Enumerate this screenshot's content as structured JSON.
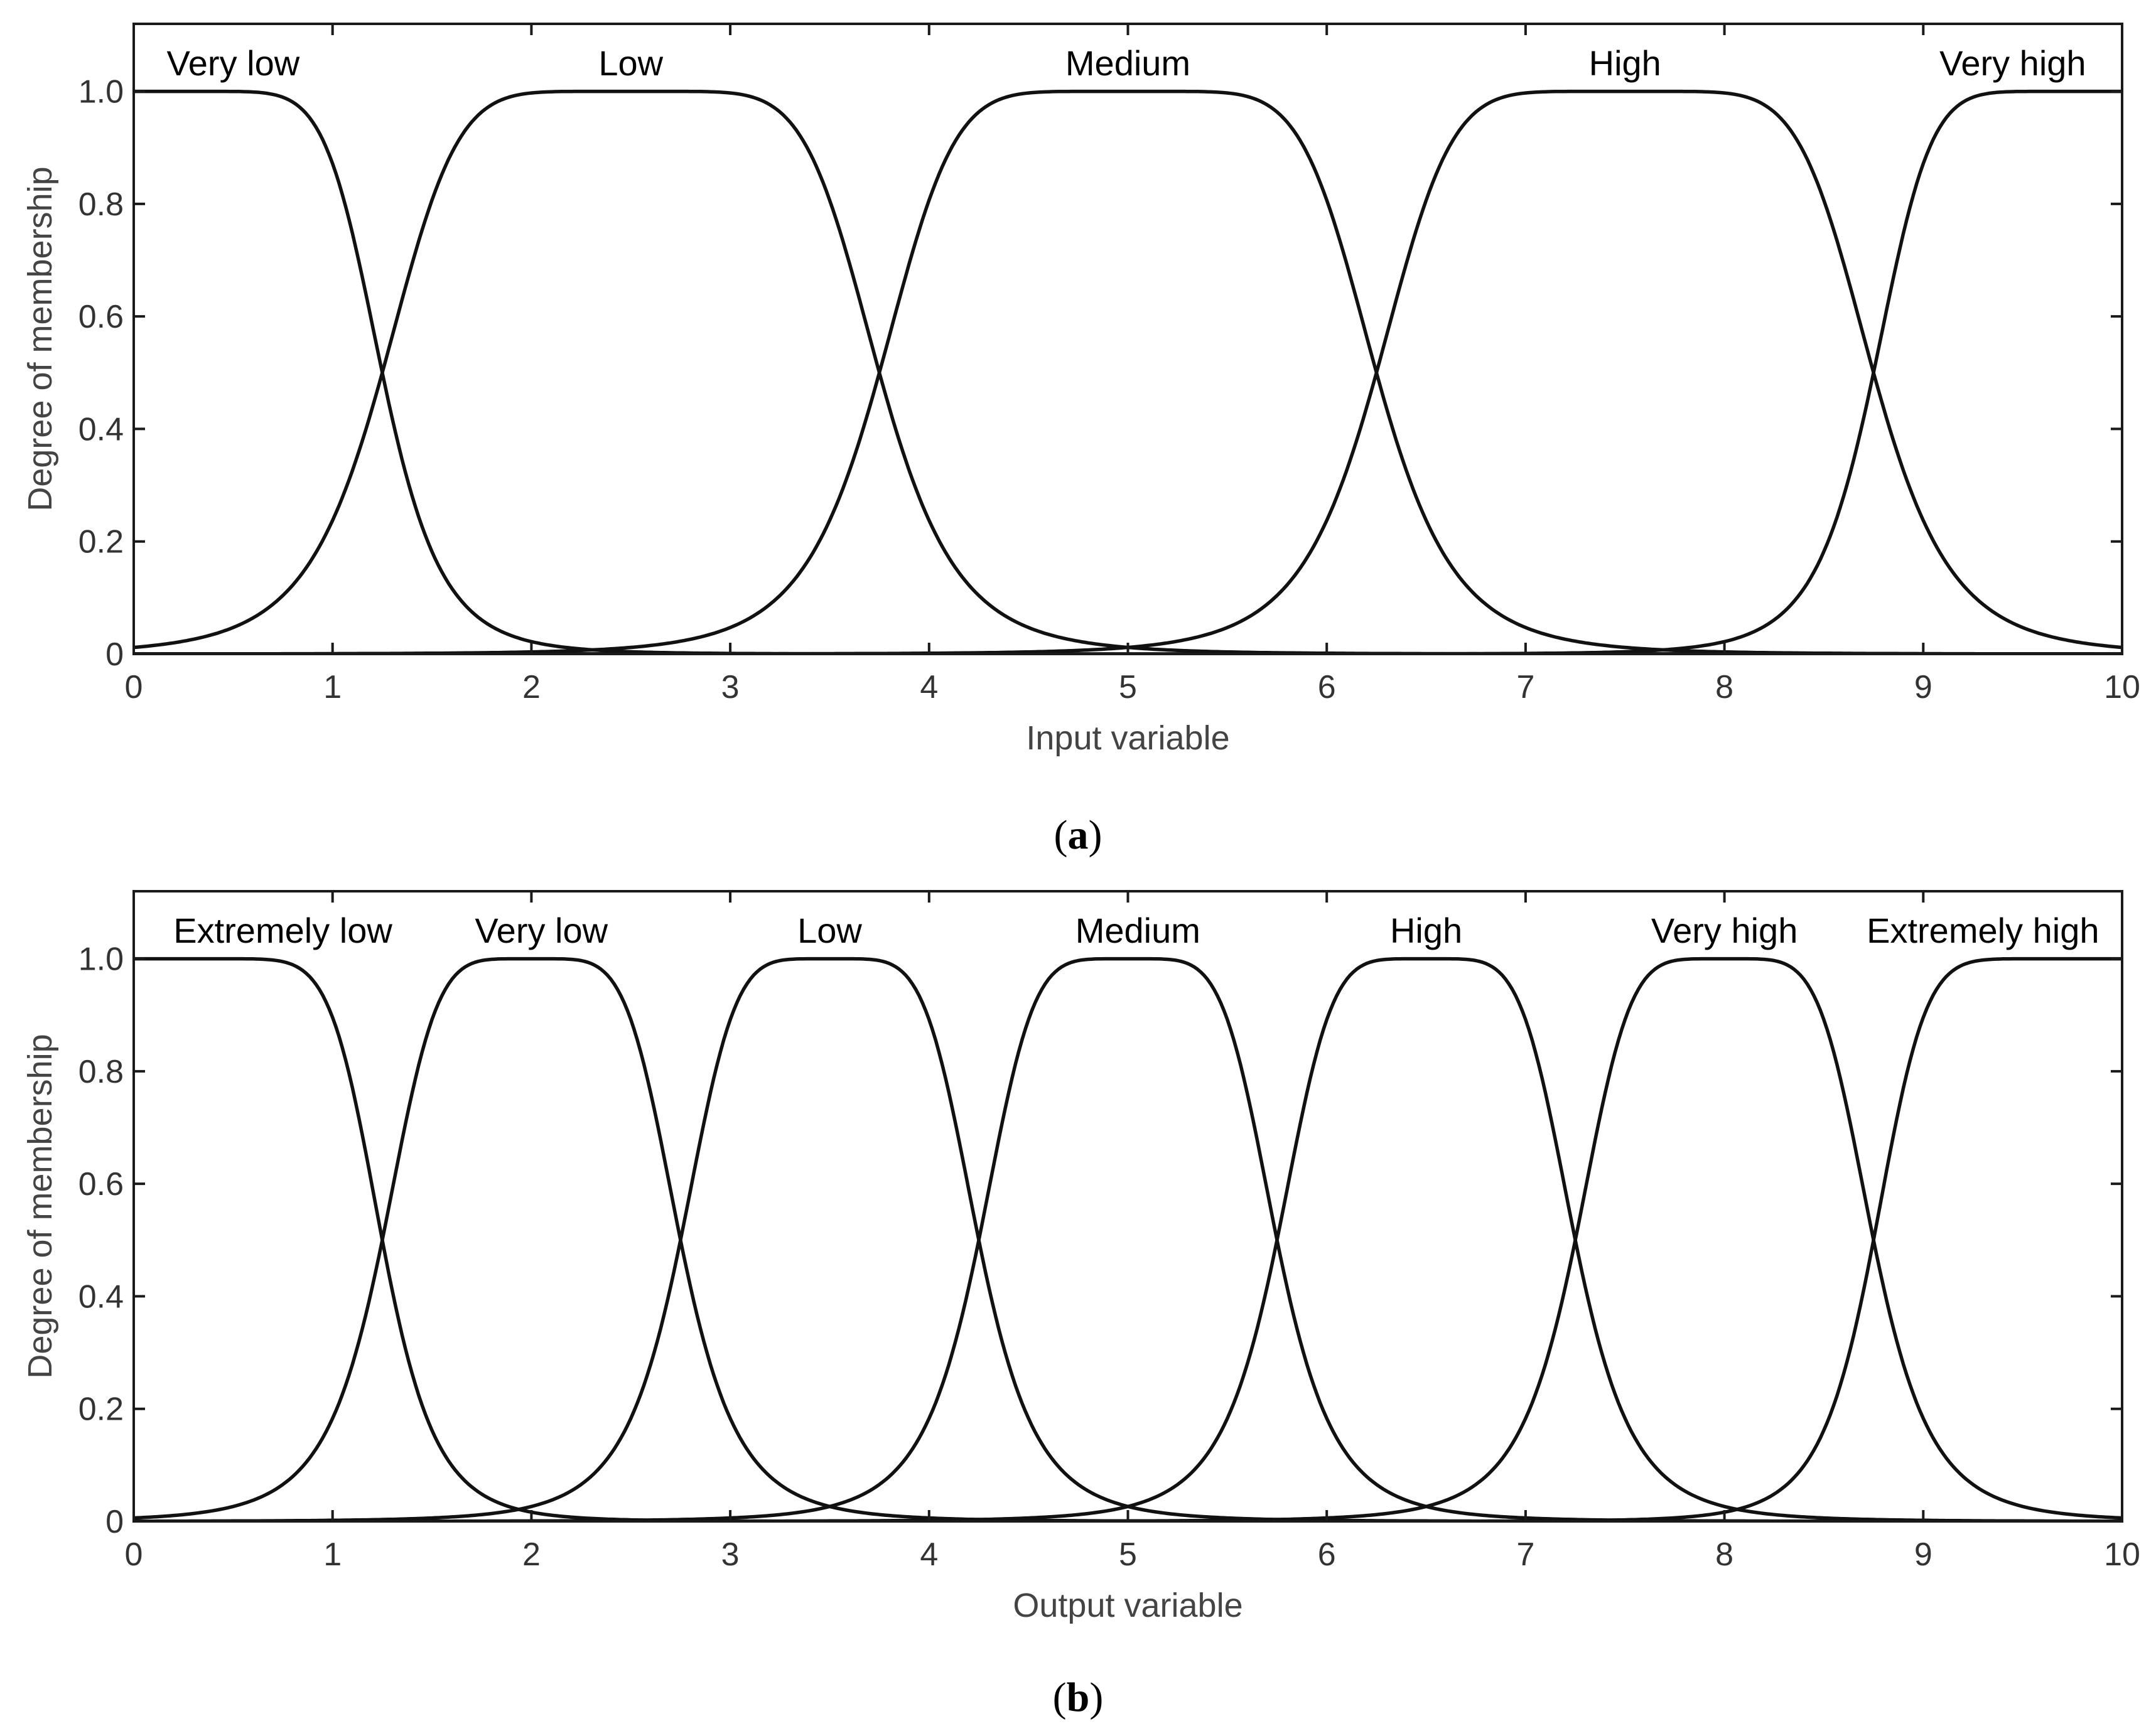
{
  "chart_data": [
    {
      "type": "line",
      "panel_label": "(a)",
      "panel_letter": "a",
      "xlabel": "Input variable",
      "ylabel": "Degree of membership",
      "xlim": [
        0,
        10
      ],
      "ylim": [
        0,
        1.12
      ],
      "x_ticks": [
        "0",
        "1",
        "2",
        "3",
        "4",
        "5",
        "6",
        "7",
        "8",
        "9",
        "10"
      ],
      "y_ticks": [
        "0",
        "0.2",
        "0.4",
        "0.6",
        "0.8",
        "1.0"
      ],
      "grid": false,
      "membership_functions": [
        {
          "name": "Very low",
          "shape": "zmf_bell",
          "label_x": 0.5,
          "params": {
            "flat_to": 0.2,
            "mid": 1.25,
            "half": 0.4,
            "exp": 2.2
          }
        },
        {
          "name": "Low",
          "shape": "gbell",
          "label_x": 2.5,
          "params": {
            "center": 2.5,
            "a": 1.25,
            "b": 3.2
          }
        },
        {
          "name": "Medium",
          "shape": "gbell",
          "label_x": 5.0,
          "params": {
            "center": 5.0,
            "a": 1.25,
            "b": 3.2
          }
        },
        {
          "name": "High",
          "shape": "gbell",
          "label_x": 7.5,
          "params": {
            "center": 7.5,
            "a": 1.25,
            "b": 3.2
          }
        },
        {
          "name": "Very high",
          "shape": "smf_bell",
          "label_x": 9.45,
          "params": {
            "flat_from": 9.8,
            "mid": 8.75,
            "half": 0.4,
            "exp": 2.2
          }
        }
      ],
      "crossings": [
        [
          1.25,
          0.5
        ],
        [
          3.75,
          0.5
        ],
        [
          6.25,
          0.5
        ],
        [
          8.75,
          0.5
        ]
      ]
    },
    {
      "type": "line",
      "panel_label": "(b)",
      "panel_letter": "b",
      "xlabel": "Output variable",
      "ylabel": "Degree of membership",
      "xlim": [
        0,
        10
      ],
      "ylim": [
        0,
        1.12
      ],
      "x_ticks": [
        "0",
        "1",
        "2",
        "3",
        "4",
        "5",
        "6",
        "7",
        "8",
        "9",
        "10"
      ],
      "y_ticks": [
        "0",
        "0.2",
        "0.4",
        "0.6",
        "0.8",
        "1.0"
      ],
      "grid": false,
      "membership_functions": [
        {
          "name": "Extremely low",
          "shape": "zmf_bell",
          "label_x": 0.75,
          "params": {
            "flat_to": 0.3,
            "mid": 1.25,
            "half": 0.42,
            "exp": 2.2
          }
        },
        {
          "name": "Very low",
          "shape": "gbell",
          "label_x": 2.05,
          "params": {
            "center": 2.0,
            "a": 0.75,
            "b": 2.6
          }
        },
        {
          "name": "Low",
          "shape": "gbell",
          "label_x": 3.5,
          "params": {
            "center": 3.5,
            "a": 0.75,
            "b": 2.6
          }
        },
        {
          "name": "Medium",
          "shape": "gbell",
          "label_x": 5.05,
          "params": {
            "center": 5.0,
            "a": 0.75,
            "b": 2.6
          }
        },
        {
          "name": "High",
          "shape": "gbell",
          "label_x": 6.5,
          "params": {
            "center": 6.5,
            "a": 0.75,
            "b": 2.6
          }
        },
        {
          "name": "Very high",
          "shape": "gbell",
          "label_x": 8.0,
          "params": {
            "center": 8.0,
            "a": 0.75,
            "b": 2.6
          }
        },
        {
          "name": "Extremely high",
          "shape": "smf_bell",
          "label_x": 9.3,
          "params": {
            "flat_from": 9.7,
            "mid": 8.75,
            "half": 0.42,
            "exp": 2.2
          }
        }
      ],
      "crossings": [
        [
          1.25,
          0.5
        ],
        [
          2.75,
          0.5
        ],
        [
          4.25,
          0.5
        ],
        [
          5.75,
          0.5
        ],
        [
          7.25,
          0.5
        ],
        [
          8.75,
          0.5
        ]
      ]
    }
  ]
}
